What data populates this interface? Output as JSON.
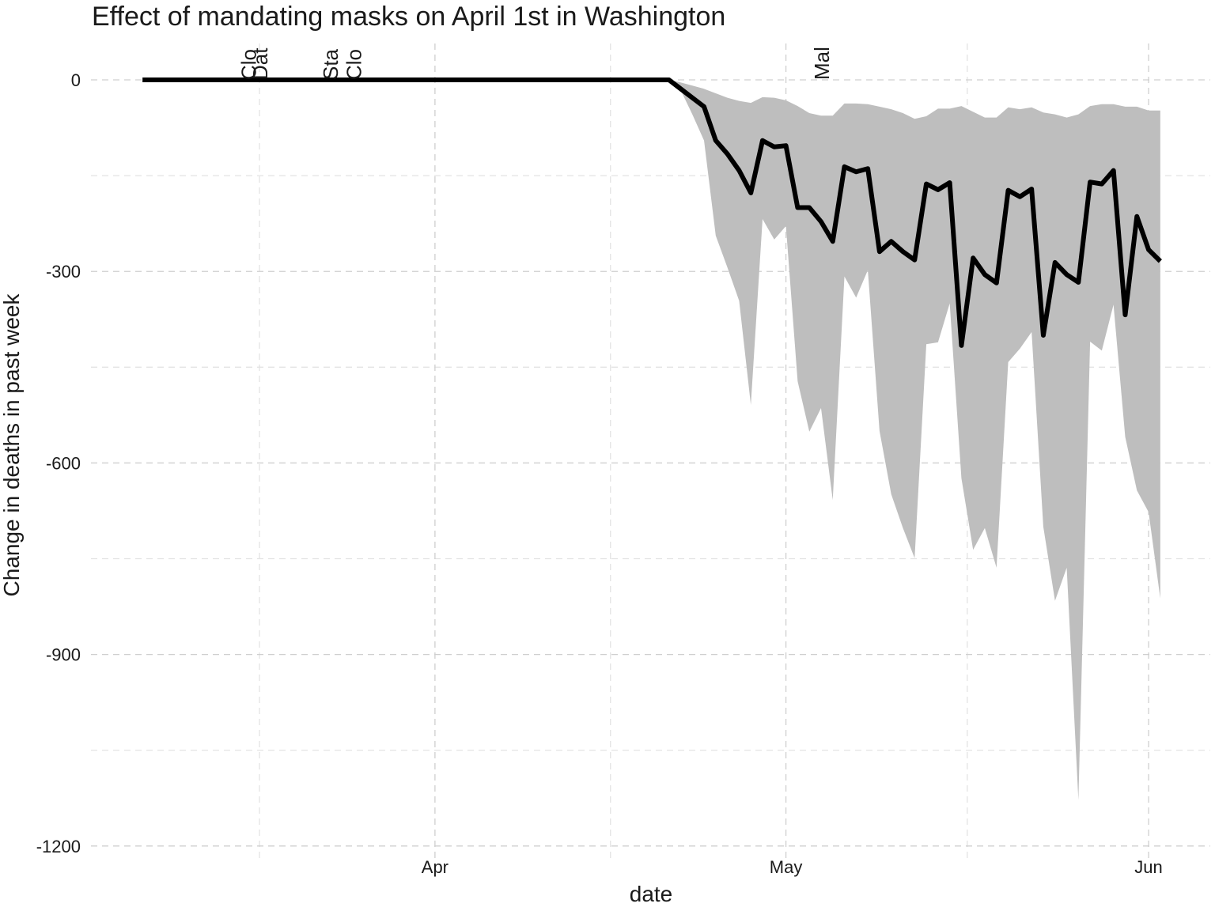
{
  "chart_data": {
    "type": "line",
    "title": "Effect of mandating masks on April 1st in Washington",
    "x_label": "date",
    "y_label": "Change in deaths in past week",
    "x": [
      "03-07",
      "04-21",
      "04-22",
      "04-23",
      "04-24",
      "04-25",
      "04-26",
      "04-27",
      "04-28",
      "04-29",
      "04-30",
      "05-01",
      "05-02",
      "05-03",
      "05-04",
      "05-05",
      "05-06",
      "05-07",
      "05-08",
      "05-09",
      "05-10",
      "05-11",
      "05-12",
      "05-13",
      "05-14",
      "05-15",
      "05-16",
      "05-17",
      "05-18",
      "05-19",
      "05-20",
      "05-21",
      "05-22",
      "05-23",
      "05-24",
      "05-25",
      "05-26",
      "05-27",
      "05-28",
      "05-29",
      "05-30",
      "05-31",
      "06-01",
      "06-02"
    ],
    "series": [
      {
        "color": "#000000",
        "ribbon_color": "#bebebe",
        "values": [
          0,
          0,
          -14,
          -28,
          -42,
          -95,
          -116,
          -142,
          -177,
          -95,
          -105,
          -103,
          -200,
          -200,
          -222,
          -253,
          -136,
          -144,
          -139,
          -269,
          -253,
          -269,
          -282,
          -163,
          -172,
          -161,
          -416,
          -279,
          -305,
          -318,
          -173,
          -183,
          -171,
          -400,
          -286,
          -305,
          -317,
          -160,
          -163,
          -142,
          -368,
          -214,
          -266,
          -284
        ],
        "upper": [
          null,
          0,
          -4,
          -9,
          -14,
          -21,
          -28,
          -33,
          -36,
          -27,
          -28,
          -32,
          -41,
          -52,
          -56,
          -56,
          -37,
          -37,
          -38,
          -42,
          -46,
          -52,
          -61,
          -57,
          -45,
          -45,
          -41,
          -50,
          -59,
          -59,
          -43,
          -46,
          -43,
          -51,
          -54,
          -59,
          -54,
          -41,
          -38,
          -38,
          -42,
          -42,
          -48,
          -48
        ],
        "lower": [
          null,
          0,
          -16,
          -54,
          -95,
          -244,
          -294,
          -346,
          -509,
          -218,
          -250,
          -229,
          -472,
          -551,
          -514,
          -658,
          -308,
          -341,
          -298,
          -550,
          -649,
          -702,
          -749,
          -414,
          -411,
          -350,
          -624,
          -736,
          -702,
          -764,
          -442,
          -421,
          -395,
          -700,
          -816,
          -764,
          -1128,
          -410,
          -424,
          -352,
          -559,
          -643,
          -677,
          -812
        ]
      }
    ],
    "annotations": [
      {
        "x": "03-16",
        "text": "Clo"
      },
      {
        "x": "03-17",
        "text": "Dat"
      },
      {
        "x": "03-23",
        "text": "Sta"
      },
      {
        "x": "03-25",
        "text": "Clo"
      },
      {
        "x": "05-04",
        "text": "Mal"
      }
    ],
    "xlim": [
      "03-03",
      "06-06"
    ],
    "xticks": [
      {
        "value": "04-01",
        "label": "Apr"
      },
      {
        "value": "05-01",
        "label": "May"
      },
      {
        "value": "06-01",
        "label": "Jun"
      }
    ],
    "ylim": [
      -1225,
      57
    ],
    "yticks": [
      0,
      -300,
      -600,
      -900,
      -1200
    ],
    "grid": true
  }
}
